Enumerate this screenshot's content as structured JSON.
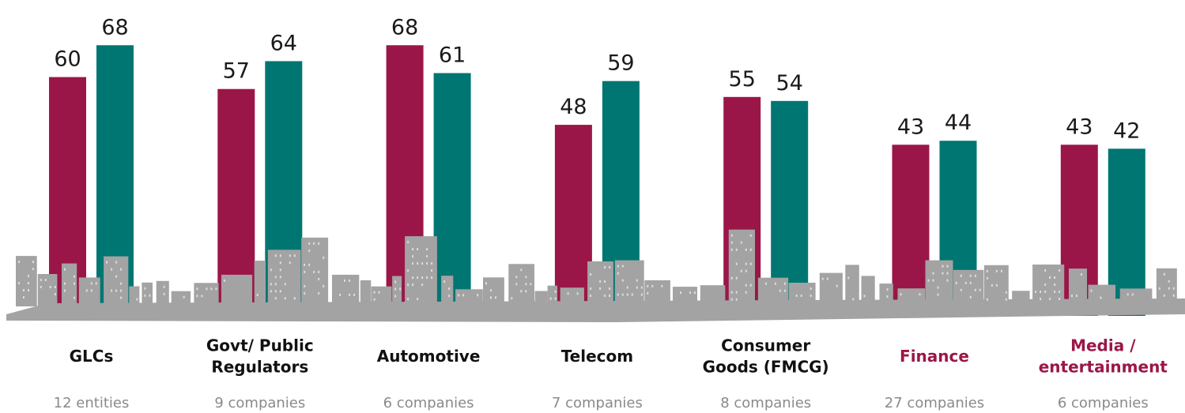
{
  "chart_data": {
    "type": "bar",
    "categories": [
      [
        "GLCs"
      ],
      [
        "Govt/ Public",
        "Regulators"
      ],
      [
        "Automotive"
      ],
      [
        "Telecom"
      ],
      [
        "Consumer",
        "Goods (FMCG)"
      ],
      [
        "Finance"
      ],
      [
        "Media /",
        "entertainment"
      ]
    ],
    "category_colors": [
      "#111111",
      "#111111",
      "#111111",
      "#111111",
      "#111111",
      "#9b1648",
      "#9b1648"
    ],
    "subtitles": [
      "12 entities",
      "9 companies",
      "6 companies",
      "7 companies",
      "8 companies",
      "27 companies",
      "6 companies"
    ],
    "series": [
      {
        "color": "#9b1648",
        "values": [
          60,
          57,
          68,
          48,
          55,
          43,
          43
        ]
      },
      {
        "color": "#007672",
        "values": [
          68,
          64,
          61,
          59,
          54,
          44,
          42
        ]
      }
    ]
  }
}
